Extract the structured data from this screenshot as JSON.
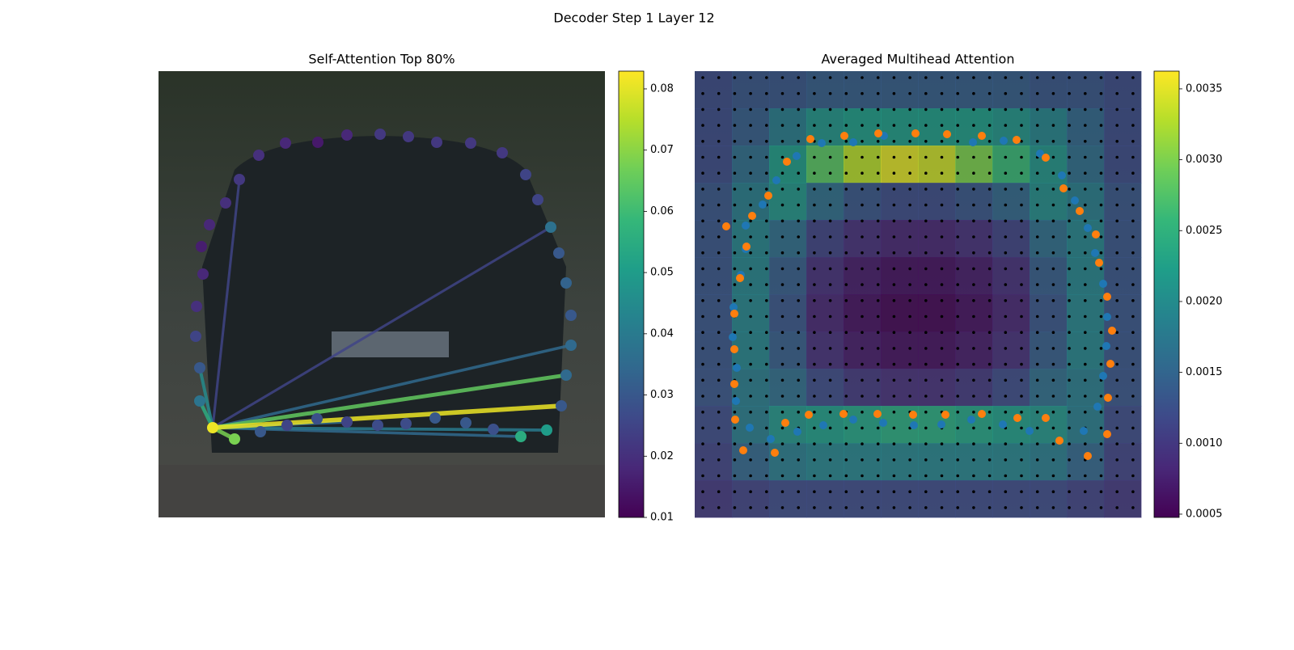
{
  "figure_title": "Decoder Step 1 Layer 12",
  "chart_data": [
    {
      "type": "attention_graph",
      "title": "Self-Attention Top 80%",
      "colormap": "viridis",
      "xlim": [
        0,
        552
      ],
      "ylim": [
        552,
        0
      ],
      "points": {
        "x": [
          67,
          94,
          126,
          159,
          196,
          233,
          271,
          306,
          342,
          380,
          414,
          448,
          480,
          498,
          504,
          510,
          510,
          504,
          495,
          485,
          469,
          454,
          425,
          386,
          344,
          309,
          274,
          233,
          197,
          157,
          124,
          100,
          83,
          63,
          53,
          55,
          47,
          46,
          51,
          51
        ],
        "y": [
          441,
          455,
          446,
          438,
          430,
          434,
          438,
          436,
          429,
          435,
          443,
          452,
          444,
          414,
          376,
          339,
          302,
          262,
          225,
          193,
          159,
          128,
          101,
          89,
          88,
          81,
          78,
          79,
          88,
          89,
          104,
          134,
          163,
          190,
          217,
          251,
          291,
          328,
          367,
          408
        ],
        "values": [
          0.081,
          0.068,
          0.03,
          0.025,
          0.028,
          0.025,
          0.027,
          0.027,
          0.03,
          0.03,
          0.028,
          0.055,
          0.05,
          0.03,
          0.035,
          0.035,
          0.03,
          0.033,
          0.03,
          0.037,
          0.025,
          0.025,
          0.022,
          0.022,
          0.022,
          0.022,
          0.022,
          0.018,
          0.015,
          0.018,
          0.02,
          0.022,
          0.02,
          0.018,
          0.016,
          0.018,
          0.02,
          0.025,
          0.03,
          0.038
        ]
      },
      "edges": {
        "source": 0,
        "targets": [
          19,
          31,
          5,
          11,
          12,
          15,
          38,
          39,
          1,
          14,
          13
        ],
        "values": [
          0.025,
          0.025,
          0.035,
          0.035,
          0.04,
          0.035,
          0.045,
          0.055,
          0.068,
          0.065,
          0.081
        ]
      },
      "clim": [
        0.01,
        0.0829
      ],
      "cticks": [
        0.01,
        0.02,
        0.03,
        0.04,
        0.05,
        0.06,
        0.07,
        0.08
      ]
    },
    {
      "type": "heatmap",
      "title": "Averaged Multihead Attention",
      "colormap": "viridis",
      "xlim": [
        0,
        552
      ],
      "ylim": [
        552,
        0
      ],
      "values": [
        [
          0.0012,
          0.0013,
          0.0013,
          0.0014,
          0.0014,
          0.0014,
          0.0014,
          0.0014,
          0.0014,
          0.0013,
          0.0013,
          0.0012
        ],
        [
          0.0012,
          0.0014,
          0.0018,
          0.0021,
          0.0022,
          0.0022,
          0.0022,
          0.0022,
          0.0021,
          0.0019,
          0.0015,
          0.0012
        ],
        [
          0.0012,
          0.0016,
          0.0022,
          0.0028,
          0.0033,
          0.0035,
          0.0034,
          0.003,
          0.0026,
          0.0021,
          0.0016,
          0.0012
        ],
        [
          0.0013,
          0.0018,
          0.0021,
          0.0016,
          0.0013,
          0.0012,
          0.0012,
          0.0013,
          0.0015,
          0.002,
          0.0018,
          0.0013
        ],
        [
          0.0013,
          0.0019,
          0.0016,
          0.0011,
          0.0009,
          0.0008,
          0.0008,
          0.0009,
          0.0011,
          0.0016,
          0.0019,
          0.0013
        ],
        [
          0.0013,
          0.0019,
          0.0014,
          0.0009,
          0.0007,
          0.0006,
          0.0006,
          0.0007,
          0.0009,
          0.0014,
          0.0019,
          0.0013
        ],
        [
          0.0013,
          0.0019,
          0.0013,
          0.0008,
          0.0006,
          0.0005,
          0.0005,
          0.0006,
          0.0008,
          0.0013,
          0.0019,
          0.0013
        ],
        [
          0.0013,
          0.0019,
          0.0014,
          0.0009,
          0.0007,
          0.0006,
          0.0006,
          0.0007,
          0.0009,
          0.0014,
          0.0019,
          0.0013
        ],
        [
          0.0013,
          0.0018,
          0.0016,
          0.0012,
          0.001,
          0.0009,
          0.0009,
          0.001,
          0.0012,
          0.0016,
          0.0018,
          0.0013
        ],
        [
          0.0012,
          0.0018,
          0.0021,
          0.0022,
          0.0023,
          0.0024,
          0.0024,
          0.0023,
          0.0022,
          0.0021,
          0.0018,
          0.0012
        ],
        [
          0.0011,
          0.0015,
          0.0018,
          0.0019,
          0.0019,
          0.0019,
          0.0019,
          0.0019,
          0.0019,
          0.0018,
          0.0015,
          0.0011
        ],
        [
          0.001,
          0.0011,
          0.0012,
          0.0012,
          0.0012,
          0.0012,
          0.0012,
          0.0012,
          0.0012,
          0.0012,
          0.0011,
          0.001
        ]
      ],
      "point_sets": [
        {
          "color": "#1f77b4",
          "x": [
            382,
            427,
            454,
            470,
            486,
            495,
            505,
            510,
            509,
            505,
            498,
            481,
            414,
            381,
            342,
            305,
            271,
            233,
            196,
            159,
            127,
            94,
            68,
            51,
            52,
            47,
            48,
            57,
            63,
            63,
            84,
            101,
            126,
            157,
            196,
            234,
            344
          ],
          "y": [
            86,
            102,
            129,
            160,
            194,
            225,
            263,
            304,
            340,
            377,
            415,
            445,
            445,
            437,
            431,
            437,
            438,
            435,
            431,
            438,
            446,
            455,
            441,
            408,
            367,
            329,
            292,
            252,
            220,
            191,
            165,
            135,
            105,
            89,
            88,
            80,
            88
          ]
        },
        {
          "color": "#ff7f0e",
          "x": [
            39,
            64,
            56,
            49,
            49,
            49,
            50,
            60,
            99,
            112,
            141,
            184,
            226,
            270,
            310,
            355,
            399,
            434,
            451,
            486,
            510,
            511,
            514,
            516,
            510,
            500,
            496,
            476,
            456,
            434,
            398,
            355,
            312,
            273,
            227,
            185,
            143,
            114,
            91,
            71
          ],
          "y": [
            192,
            217,
            256,
            300,
            344,
            387,
            431,
            469,
            472,
            435,
            425,
            424,
            424,
            425,
            425,
            424,
            429,
            429,
            457,
            476,
            449,
            404,
            362,
            321,
            279,
            237,
            202,
            173,
            145,
            107,
            85,
            80,
            78,
            77,
            77,
            80,
            84,
            112,
            154,
            179
          ]
        }
      ],
      "clim": [
        0.000477,
        0.003625
      ],
      "cticks": [
        0.0005,
        {
          "value": 0.001,
          "label": "0.0010"
        },
        0.0015,
        {
          "value": 0.002,
          "label": "0.0020"
        },
        0.0025,
        {
          "value": 0.003,
          "label": "0.0030"
        },
        0.0035
      ]
    }
  ]
}
